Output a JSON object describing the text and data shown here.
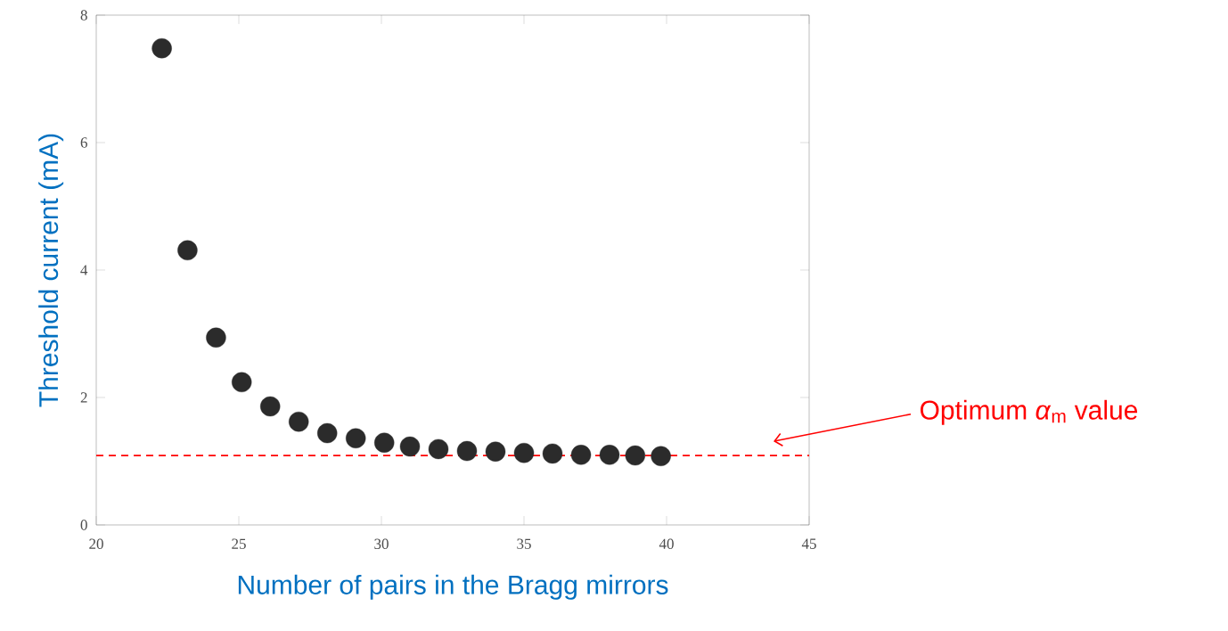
{
  "chart_data": {
    "type": "scatter",
    "xlabel": "Number of pairs in the Bragg mirrors",
    "ylabel": "Threshold current (mA)",
    "x": [
      22.3,
      23.2,
      24.2,
      25.1,
      26.1,
      27.1,
      28.1,
      29.1,
      30.1,
      31.0,
      32.0,
      33.0,
      34.0,
      35.0,
      36.0,
      37.0,
      38.0,
      38.9,
      39.8
    ],
    "series": [
      {
        "color": "#2b2b2b",
        "values": [
          7.48,
          4.31,
          2.94,
          2.24,
          1.86,
          1.62,
          1.44,
          1.36,
          1.29,
          1.23,
          1.19,
          1.16,
          1.15,
          1.13,
          1.12,
          1.1,
          1.1,
          1.09,
          1.08
        ]
      }
    ],
    "marker": "circle",
    "xlim": [
      20,
      45
    ],
    "ylim": [
      0,
      8
    ],
    "xticks": [
      20,
      25,
      30,
      35,
      40,
      45
    ],
    "yticks": [
      0,
      2,
      4,
      6,
      8
    ],
    "grid": false,
    "ref_lines": [
      {
        "axis": "y",
        "value": 1.09,
        "color": "#ff0000",
        "line_style": "dashed"
      }
    ],
    "annotations": [
      "Optimum *α*$_{m}$ value"
    ]
  }
}
